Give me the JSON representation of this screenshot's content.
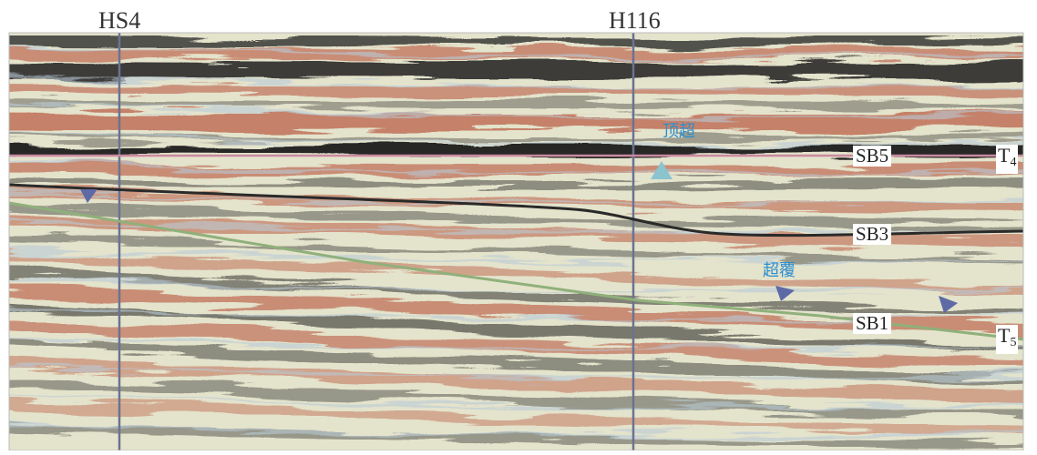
{
  "wells": [
    {
      "label": "HS4"
    },
    {
      "label": "H116"
    }
  ],
  "horizons": [
    {
      "label": "SB5",
      "color": "#c98aa0"
    },
    {
      "label": "SB3",
      "color": "#2a2a2a"
    },
    {
      "label": "SB1",
      "color": "#8fb07a"
    }
  ],
  "reflectors": [
    {
      "label": "T",
      "sub": "4"
    },
    {
      "label": "T",
      "sub": "5"
    }
  ],
  "annotations": {
    "toplap": "顶超",
    "downlap": "超覆"
  },
  "colors": {
    "positive": "#c07058",
    "negative": "#202020",
    "neutral": "#e4e3cc",
    "well_line": "#6b7390",
    "marker": "#5e6aa6",
    "toplap_marker": "#8bc3cf",
    "annotation": "#2b8fd0"
  }
}
